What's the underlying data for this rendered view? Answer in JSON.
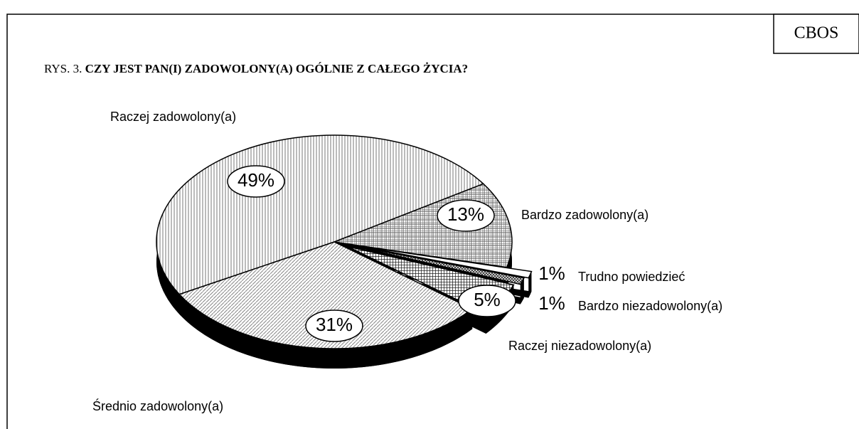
{
  "chart_data": {
    "type": "pie",
    "source": "CBOS",
    "figure_label": "RYS. 3.",
    "title": "CZY JEST PAN(I) ZADOWOLONY(A) OGÓLNIE Z CAŁEGO ŻYCIA?",
    "categories": [
      "Bardzo zadowolony(a)",
      "Trudno powiedzieć",
      "Bardzo niezadowolony(a)",
      "Raczej niezadowolony(a)",
      "Średnio zadowolony(a)",
      "Raczej zadowolony(a)"
    ],
    "values": [
      13,
      1,
      1,
      5,
      31,
      49
    ],
    "value_labels": [
      "13%",
      "1%",
      "1%",
      "5%",
      "31%",
      "49%"
    ]
  }
}
